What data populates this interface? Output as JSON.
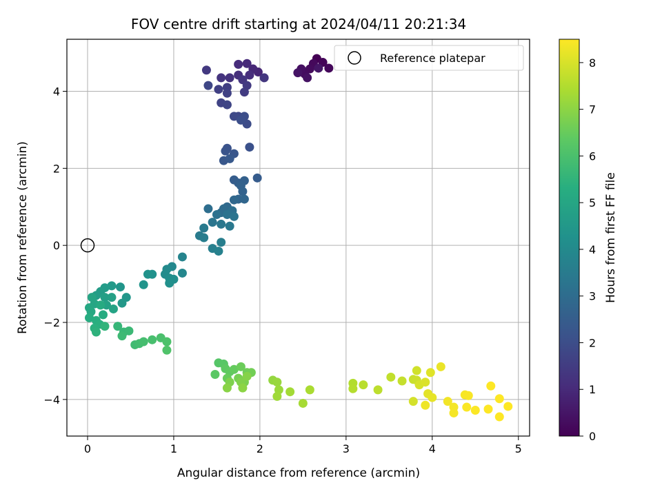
{
  "chart_data": {
    "type": "scatter",
    "title": "FOV centre drift starting at 2024/04/11 20:21:34",
    "xlabel": "Angular distance from reference (arcmin)",
    "ylabel": "Rotation from reference (arcmin)",
    "xlim": [
      -0.24,
      5.13
    ],
    "ylim": [
      -4.95,
      5.35
    ],
    "xticks": [
      0,
      1,
      2,
      3,
      4,
      5
    ],
    "yticks": [
      -4,
      -2,
      0,
      2,
      4
    ],
    "grid": true,
    "colormap": "viridis",
    "colorbar": {
      "label": "Hours from first FF file",
      "range": [
        0,
        8.5
      ],
      "ticks": [
        0,
        1,
        2,
        3,
        4,
        5,
        6,
        7,
        8
      ]
    },
    "legend": {
      "position": "top-right",
      "entries": [
        "Reference platepar"
      ]
    },
    "reference_point": {
      "x": 0,
      "y": 0,
      "label": "Reference platepar"
    },
    "points": [
      [
        2.66,
        4.85,
        0.0
      ],
      [
        2.73,
        4.75,
        0.1
      ],
      [
        2.8,
        4.6,
        0.15
      ],
      [
        2.62,
        4.72,
        0.2
      ],
      [
        2.58,
        4.58,
        0.25
      ],
      [
        2.52,
        4.45,
        0.3
      ],
      [
        2.48,
        4.58,
        0.35
      ],
      [
        2.55,
        4.35,
        0.4
      ],
      [
        2.44,
        4.48,
        0.45
      ],
      [
        2.68,
        4.6,
        0.5
      ],
      [
        1.98,
        4.5,
        0.9
      ],
      [
        1.92,
        4.58,
        0.95
      ],
      [
        1.85,
        4.72,
        1.0
      ],
      [
        1.75,
        4.7,
        1.05
      ],
      [
        1.88,
        4.42,
        1.1
      ],
      [
        1.75,
        4.42,
        1.15
      ],
      [
        1.65,
        4.35,
        1.2
      ],
      [
        1.55,
        4.35,
        1.25
      ],
      [
        1.8,
        4.3,
        1.3
      ],
      [
        2.05,
        4.35,
        1.35
      ],
      [
        1.38,
        4.55,
        1.4
      ],
      [
        1.85,
        4.15,
        1.45
      ],
      [
        1.82,
        3.98,
        1.5
      ],
      [
        1.62,
        4.1,
        1.55
      ],
      [
        1.52,
        4.05,
        1.6
      ],
      [
        1.62,
        3.95,
        1.65
      ],
      [
        1.55,
        3.7,
        1.7
      ],
      [
        1.62,
        3.65,
        1.75
      ],
      [
        1.4,
        4.15,
        1.8
      ],
      [
        1.75,
        3.35,
        1.85
      ],
      [
        1.7,
        3.35,
        1.9
      ],
      [
        1.85,
        3.15,
        1.95
      ],
      [
        1.82,
        3.35,
        2.0
      ],
      [
        1.78,
        3.25,
        2.05
      ],
      [
        1.88,
        2.55,
        2.1
      ],
      [
        1.62,
        2.52,
        2.15
      ],
      [
        1.6,
        2.45,
        2.2
      ],
      [
        1.7,
        2.38,
        2.25
      ],
      [
        1.58,
        2.2,
        2.3
      ],
      [
        1.65,
        2.25,
        2.35
      ],
      [
        1.97,
        1.75,
        2.45
      ],
      [
        1.7,
        1.7,
        2.5
      ],
      [
        1.75,
        1.62,
        2.55
      ],
      [
        1.82,
        1.68,
        2.6
      ],
      [
        1.78,
        1.55,
        2.65
      ],
      [
        1.8,
        1.4,
        2.7
      ],
      [
        1.75,
        1.2,
        2.75
      ],
      [
        1.82,
        1.2,
        2.8
      ],
      [
        1.7,
        1.18,
        2.85
      ],
      [
        1.62,
        1.0,
        2.9
      ],
      [
        1.58,
        0.95,
        2.95
      ],
      [
        1.55,
        0.85,
        3.0
      ],
      [
        1.4,
        0.95,
        3.05
      ],
      [
        1.68,
        0.9,
        3.1
      ],
      [
        1.5,
        0.8,
        3.15
      ],
      [
        1.62,
        0.8,
        3.2
      ],
      [
        1.7,
        0.75,
        3.25
      ],
      [
        1.45,
        0.6,
        3.3
      ],
      [
        1.55,
        0.55,
        3.35
      ],
      [
        1.65,
        0.5,
        3.4
      ],
      [
        1.35,
        0.45,
        3.45
      ],
      [
        1.3,
        0.25,
        3.5
      ],
      [
        1.35,
        0.2,
        3.55
      ],
      [
        1.55,
        0.08,
        3.6
      ],
      [
        1.45,
        -0.08,
        3.65
      ],
      [
        1.52,
        -0.15,
        3.7
      ],
      [
        1.1,
        -0.3,
        3.8
      ],
      [
        1.1,
        -0.72,
        3.9
      ],
      [
        0.98,
        -0.55,
        3.95
      ],
      [
        0.92,
        -0.62,
        4.0
      ],
      [
        0.9,
        -0.75,
        4.05
      ],
      [
        0.95,
        -0.85,
        4.1
      ],
      [
        1.0,
        -0.88,
        4.15
      ],
      [
        0.95,
        -0.98,
        4.2
      ],
      [
        0.75,
        -0.75,
        4.25
      ],
      [
        0.7,
        -0.75,
        4.3
      ],
      [
        0.65,
        -1.02,
        4.35
      ],
      [
        0.38,
        -1.08,
        4.4
      ],
      [
        0.45,
        -1.35,
        4.45
      ],
      [
        0.4,
        -1.5,
        4.5
      ],
      [
        0.28,
        -1.05,
        4.55
      ],
      [
        0.2,
        -1.1,
        4.6
      ],
      [
        0.15,
        -1.2,
        4.65
      ],
      [
        0.1,
        -1.3,
        4.7
      ],
      [
        0.2,
        -1.35,
        4.75
      ],
      [
        0.28,
        -1.35,
        4.8
      ],
      [
        0.22,
        -1.55,
        4.85
      ],
      [
        0.3,
        -1.65,
        4.9
      ],
      [
        0.05,
        -1.35,
        4.95
      ],
      [
        0.08,
        -1.52,
        5.0
      ],
      [
        0.02,
        -1.62,
        5.05
      ],
      [
        0.04,
        -1.72,
        5.1
      ],
      [
        0.15,
        -1.55,
        5.15
      ],
      [
        0.18,
        -1.8,
        5.2
      ],
      [
        0.02,
        -1.88,
        5.25
      ],
      [
        0.1,
        -1.95,
        5.3
      ],
      [
        0.14,
        -2.05,
        5.35
      ],
      [
        0.08,
        -2.15,
        5.4
      ],
      [
        0.1,
        -2.25,
        5.45
      ],
      [
        0.2,
        -2.1,
        5.5
      ],
      [
        0.35,
        -2.1,
        5.6
      ],
      [
        0.42,
        -2.25,
        5.65
      ],
      [
        0.48,
        -2.22,
        5.7
      ],
      [
        0.4,
        -2.35,
        5.75
      ],
      [
        0.55,
        -2.58,
        5.8
      ],
      [
        0.6,
        -2.55,
        5.85
      ],
      [
        0.65,
        -2.5,
        5.9
      ],
      [
        0.75,
        -2.45,
        5.95
      ],
      [
        0.85,
        -2.4,
        6.0
      ],
      [
        0.92,
        -2.5,
        6.05
      ],
      [
        0.92,
        -2.72,
        6.1
      ],
      [
        1.52,
        -3.05,
        6.2
      ],
      [
        1.58,
        -3.08,
        6.25
      ],
      [
        1.48,
        -3.35,
        6.3
      ],
      [
        1.6,
        -3.2,
        6.35
      ],
      [
        1.65,
        -3.28,
        6.4
      ],
      [
        1.7,
        -3.22,
        6.45
      ],
      [
        1.62,
        -3.45,
        6.5
      ],
      [
        1.78,
        -3.15,
        6.55
      ],
      [
        1.85,
        -3.3,
        6.6
      ],
      [
        1.9,
        -3.3,
        6.65
      ],
      [
        1.75,
        -3.45,
        6.7
      ],
      [
        1.82,
        -3.55,
        6.75
      ],
      [
        1.65,
        -3.55,
        6.8
      ],
      [
        1.78,
        -3.55,
        6.85
      ],
      [
        1.85,
        -3.4,
        6.9
      ],
      [
        1.62,
        -3.7,
        6.95
      ],
      [
        1.8,
        -3.7,
        7.0
      ],
      [
        2.15,
        -3.5,
        7.1
      ],
      [
        2.2,
        -3.55,
        7.15
      ],
      [
        2.22,
        -3.75,
        7.2
      ],
      [
        2.2,
        -3.92,
        7.25
      ],
      [
        2.35,
        -3.8,
        7.3
      ],
      [
        2.5,
        -4.1,
        7.35
      ],
      [
        2.58,
        -3.75,
        7.4
      ],
      [
        3.08,
        -3.58,
        7.5
      ],
      [
        3.08,
        -3.72,
        7.55
      ],
      [
        3.2,
        -3.62,
        7.6
      ],
      [
        3.37,
        -3.75,
        7.65
      ],
      [
        3.52,
        -3.42,
        7.7
      ],
      [
        3.65,
        -3.52,
        7.75
      ],
      [
        3.78,
        -3.48,
        7.8
      ],
      [
        3.82,
        -3.5,
        7.85
      ],
      [
        3.82,
        -3.25,
        7.9
      ],
      [
        3.78,
        -4.05,
        7.95
      ],
      [
        3.85,
        -3.62,
        8.0
      ],
      [
        3.92,
        -3.55,
        8.05
      ],
      [
        3.98,
        -3.3,
        8.1
      ],
      [
        3.95,
        -3.85,
        8.15
      ],
      [
        4.0,
        -3.95,
        8.2
      ],
      [
        4.1,
        -3.15,
        8.25
      ],
      [
        3.92,
        -4.15,
        8.3
      ],
      [
        4.18,
        -4.05,
        8.35
      ],
      [
        4.25,
        -4.2,
        8.38
      ],
      [
        4.25,
        -4.35,
        8.4
      ],
      [
        4.38,
        -3.88,
        8.42
      ],
      [
        4.42,
        -3.9,
        8.44
      ],
      [
        4.4,
        -4.2,
        8.46
      ],
      [
        4.5,
        -4.28,
        8.48
      ],
      [
        4.65,
        -4.25,
        8.5
      ],
      [
        4.68,
        -3.65,
        8.5
      ],
      [
        4.78,
        -3.98,
        8.5
      ],
      [
        4.78,
        -4.45,
        8.5
      ],
      [
        4.88,
        -4.18,
        8.5
      ]
    ]
  }
}
